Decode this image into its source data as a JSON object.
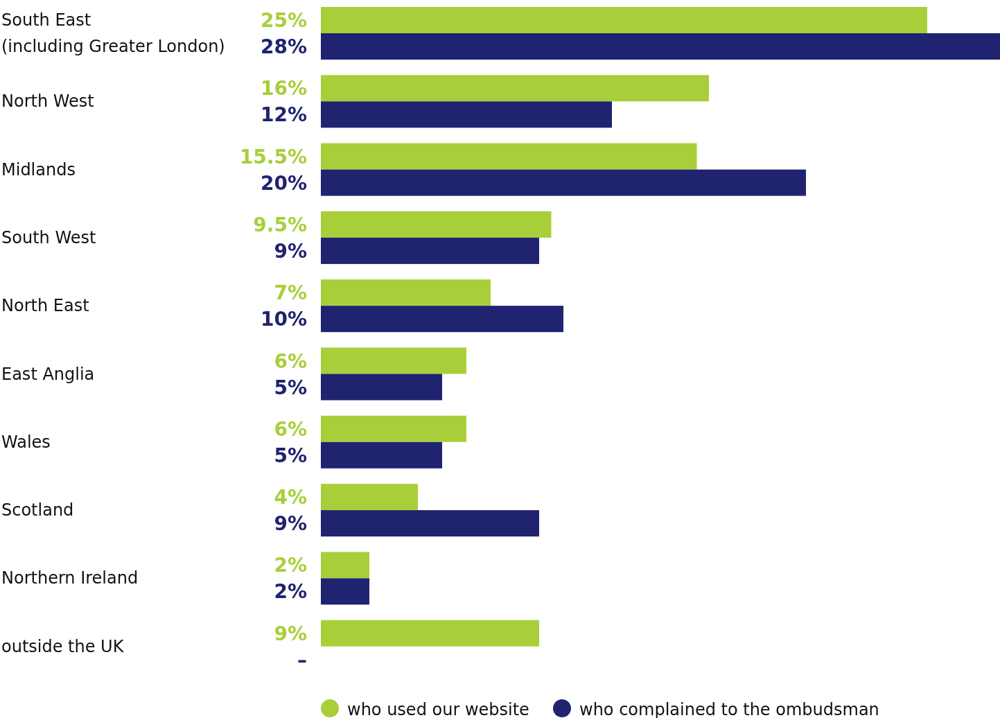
{
  "chart_data": {
    "type": "bar",
    "orientation": "horizontal",
    "categories": [
      "South East\n(including Greater London)",
      "North West",
      "Midlands",
      "South West",
      "North East",
      "East Anglia",
      "Wales",
      "Scotland",
      "Northern Ireland",
      "outside the UK"
    ],
    "series": [
      {
        "name": "who used our website",
        "color": "#a8cf3a",
        "values": [
          25,
          16,
          15.5,
          9.5,
          7,
          6,
          6,
          4,
          2,
          9
        ],
        "value_labels": [
          "25%",
          "16%",
          "15.5%",
          "9.5%",
          "7%",
          "6%",
          "6%",
          "4%",
          "2%",
          "9%"
        ]
      },
      {
        "name": "who complained to the ombudsman",
        "color": "#1f2370",
        "values": [
          28,
          12,
          20,
          9,
          10,
          5,
          5,
          9,
          2,
          null
        ],
        "value_labels": [
          "28%",
          "12%",
          "20%",
          "9%",
          "10%",
          "5%",
          "5%",
          "9%",
          "2%",
          "–"
        ]
      }
    ],
    "legend": "bottom"
  }
}
